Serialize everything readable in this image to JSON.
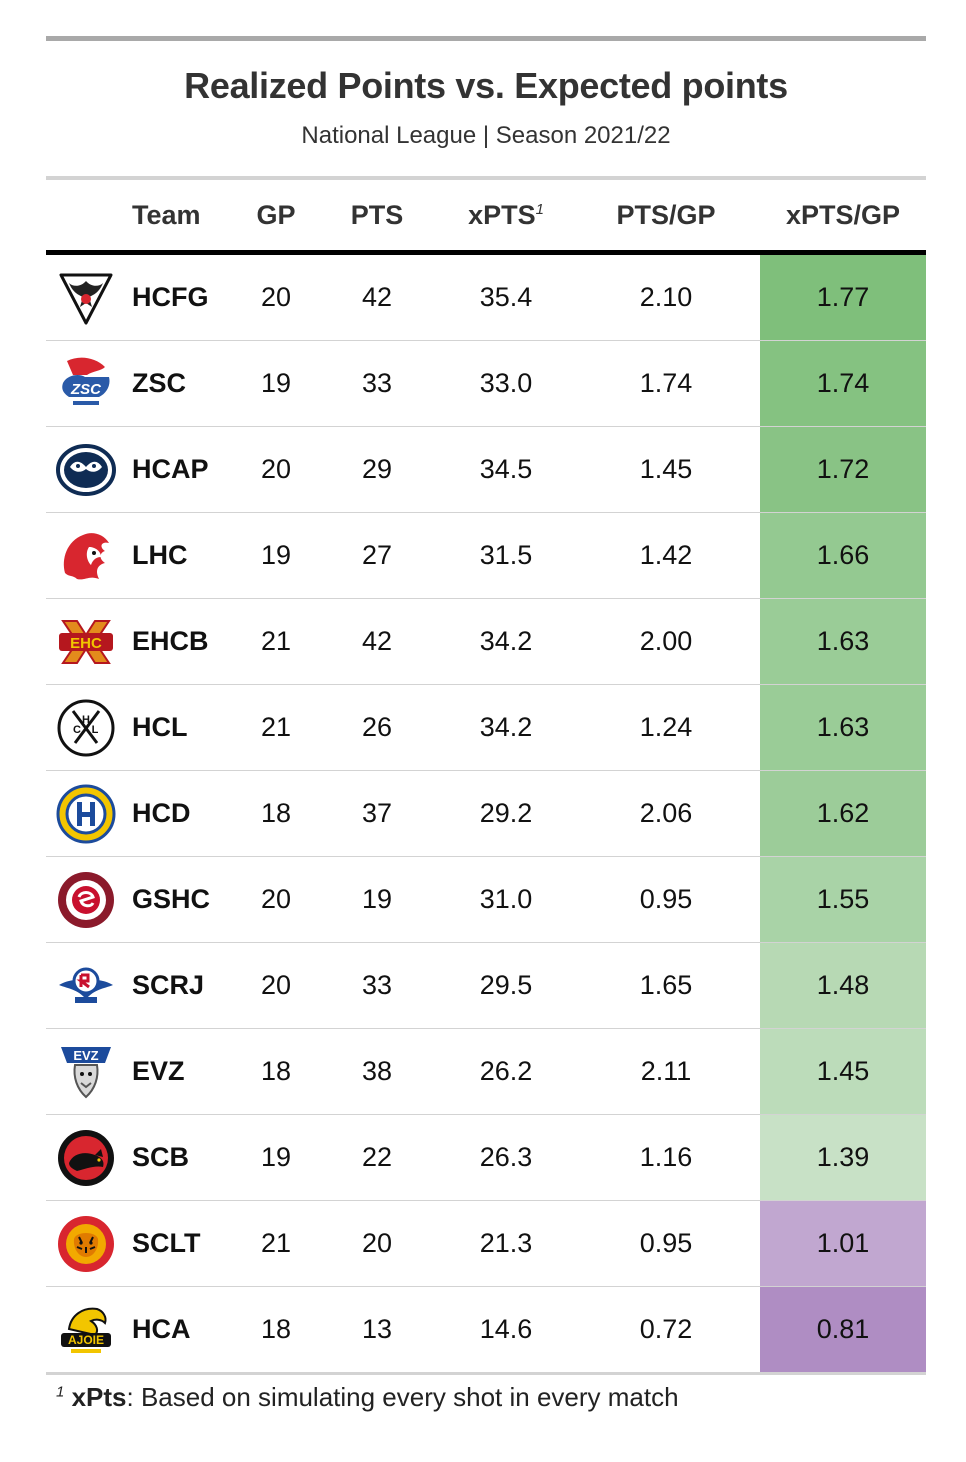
{
  "header": {
    "title": "Realized Points vs. Expected points",
    "subtitle": "National League | Season 2021/22"
  },
  "columns": {
    "team": "Team",
    "gp": "GP",
    "pts": "PTS",
    "xpts": "xPTS",
    "xpts_footnote_mark": "1",
    "pts_gp": "PTS/GP",
    "xpts_gp": "xPTS/GP"
  },
  "footnote": {
    "mark": "1",
    "term": "xPts",
    "text": ": Based on simulating every shot in every match"
  },
  "colors": {
    "high": "#7fbf7b",
    "low": "#af8dc3",
    "neutral": "#f7f7f7"
  },
  "chart_data": {
    "type": "table",
    "title": "Realized Points vs. Expected points",
    "subtitle": "National League | Season 2021/22",
    "columns": [
      "Team",
      "GP",
      "PTS",
      "xPTS",
      "PTS/GP",
      "xPTS/GP"
    ],
    "rows": [
      {
        "team": "HCFG",
        "logo": "fribourg-gotteron-logo-icon",
        "gp": "20",
        "pts": "42",
        "xpts": "35.4",
        "pts_gp": "2.10",
        "xpts_gp": "1.77",
        "xpts_gp_value": 1.77
      },
      {
        "team": "ZSC",
        "logo": "zsc-lions-logo-icon",
        "gp": "19",
        "pts": "33",
        "xpts": "33.0",
        "pts_gp": "1.74",
        "xpts_gp": "1.74",
        "xpts_gp_value": 1.74
      },
      {
        "team": "HCAP",
        "logo": "ambri-piotta-logo-icon",
        "gp": "20",
        "pts": "29",
        "xpts": "34.5",
        "pts_gp": "1.45",
        "xpts_gp": "1.72",
        "xpts_gp_value": 1.72
      },
      {
        "team": "LHC",
        "logo": "lausanne-lion-logo-icon",
        "gp": "19",
        "pts": "27",
        "xpts": "31.5",
        "pts_gp": "1.42",
        "xpts_gp": "1.66",
        "xpts_gp_value": 1.66
      },
      {
        "team": "EHCB",
        "logo": "ehc-biel-logo-icon",
        "gp": "21",
        "pts": "42",
        "xpts": "34.2",
        "pts_gp": "2.00",
        "xpts_gp": "1.63",
        "xpts_gp_value": 1.63
      },
      {
        "team": "HCL",
        "logo": "lugano-logo-icon",
        "gp": "21",
        "pts": "26",
        "xpts": "34.2",
        "pts_gp": "1.24",
        "xpts_gp": "1.63",
        "xpts_gp_value": 1.63
      },
      {
        "team": "HCD",
        "logo": "davos-logo-icon",
        "gp": "18",
        "pts": "37",
        "xpts": "29.2",
        "pts_gp": "2.06",
        "xpts_gp": "1.62",
        "xpts_gp_value": 1.62
      },
      {
        "team": "GSHC",
        "logo": "geneve-servette-logo-icon",
        "gp": "20",
        "pts": "19",
        "xpts": "31.0",
        "pts_gp": "0.95",
        "xpts_gp": "1.55",
        "xpts_gp_value": 1.55
      },
      {
        "team": "SCRJ",
        "logo": "rapperswil-lakers-logo-icon",
        "gp": "20",
        "pts": "33",
        "xpts": "29.5",
        "pts_gp": "1.65",
        "xpts_gp": "1.48",
        "xpts_gp_value": 1.48
      },
      {
        "team": "EVZ",
        "logo": "ev-zug-logo-icon",
        "gp": "18",
        "pts": "38",
        "xpts": "26.2",
        "pts_gp": "2.11",
        "xpts_gp": "1.45",
        "xpts_gp_value": 1.45
      },
      {
        "team": "SCB",
        "logo": "sc-bern-bear-logo-icon",
        "gp": "19",
        "pts": "22",
        "xpts": "26.3",
        "pts_gp": "1.16",
        "xpts_gp": "1.39",
        "xpts_gp_value": 1.39
      },
      {
        "team": "SCLT",
        "logo": "langnau-tigers-logo-icon",
        "gp": "21",
        "pts": "20",
        "xpts": "21.3",
        "pts_gp": "0.95",
        "xpts_gp": "1.01",
        "xpts_gp_value": 1.01
      },
      {
        "team": "HCA",
        "logo": "ajoie-dragon-logo-icon",
        "gp": "18",
        "pts": "13",
        "xpts": "14.6",
        "pts_gp": "0.72",
        "xpts_gp": "0.81",
        "xpts_gp_value": 0.81
      }
    ]
  }
}
